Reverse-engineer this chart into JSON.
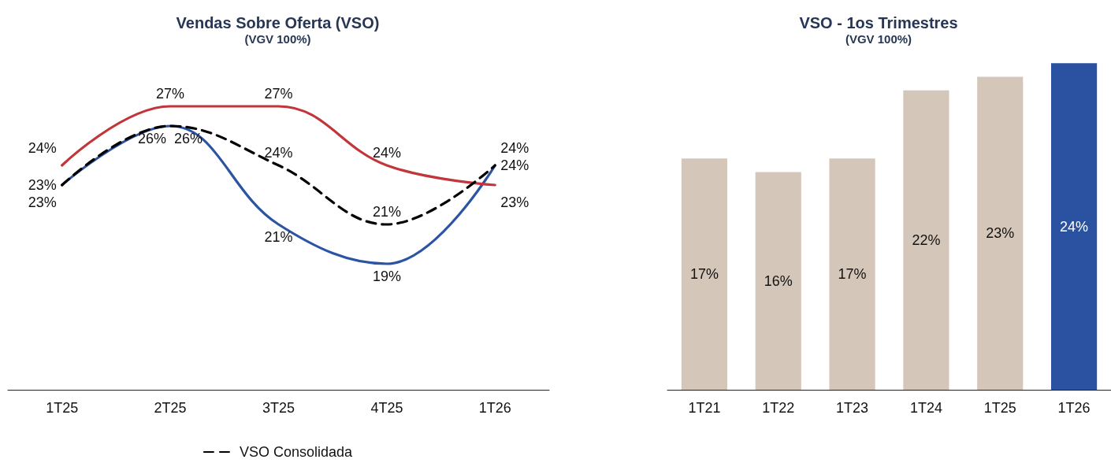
{
  "chart_data": [
    {
      "type": "line",
      "title": "Vendas Sobre Oferta (VSO)",
      "subtitle": "(VGV 100%)",
      "categories": [
        "1T25",
        "2T25",
        "3T25",
        "4T25",
        "1T26"
      ],
      "series": [
        {
          "color": "#2c54a4",
          "line_style": "solid",
          "values": [
            23,
            26,
            21,
            19,
            24
          ],
          "value_labels": [
            "23%",
            "26%",
            "21%",
            "19%",
            "24%"
          ]
        },
        {
          "color": "#c1353b",
          "line_style": "solid",
          "values": [
            24,
            27,
            27,
            24,
            23
          ],
          "value_labels": [
            "24%",
            "27%",
            "27%",
            "24%",
            "23%"
          ]
        },
        {
          "name": "VSO Consolidada",
          "color": "#000000",
          "line_style": "dashed",
          "values": [
            23,
            26,
            24,
            21,
            24
          ],
          "value_labels": [
            "23%",
            "26%",
            "24%",
            "21%",
            "24%"
          ]
        }
      ],
      "marker": "none",
      "legend": "bottom",
      "grid": false
    },
    {
      "type": "bar",
      "title": "VSO - 1os Trimestres",
      "subtitle": "(VGV 100%)",
      "categories": [
        "1T21",
        "1T22",
        "1T23",
        "1T24",
        "1T25",
        "1T26"
      ],
      "values": [
        17,
        16,
        17,
        22,
        23,
        24
      ],
      "colors": [
        "#d4c7ba",
        "#d4c7ba",
        "#d4c7ba",
        "#d4c7ba",
        "#d4c7ba",
        "#2a52a0"
      ],
      "value_labels": [
        "17%",
        "16%",
        "17%",
        "22%",
        "23%",
        "24%"
      ],
      "grid": false
    }
  ]
}
